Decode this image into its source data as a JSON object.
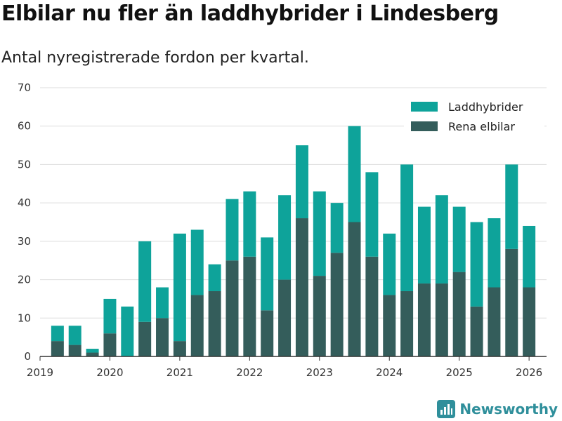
{
  "header": {
    "title": "Elbilar nu fler än laddhybrider i Lindesberg",
    "subtitle": "Antal nyregistrerade fordon per kvartal."
  },
  "brand": {
    "name": "Newsworthy"
  },
  "colors": {
    "hybrid": "#0ea39a",
    "electric": "#345d5b",
    "grid": "#dddddd",
    "axis": "#333333",
    "brand": "#2f8f9b"
  },
  "chart_data": {
    "type": "bar",
    "stacked": true,
    "title": "Elbilar nu fler än laddhybrider i Lindesberg",
    "subtitle": "Antal nyregistrerade fordon per kvartal.",
    "xlabel": "",
    "ylabel": "",
    "ylim": [
      0,
      70
    ],
    "yticks": [
      0,
      10,
      20,
      30,
      40,
      50,
      60,
      70
    ],
    "xlim": [
      2019,
      2026.25
    ],
    "xticks": [
      2019,
      2020,
      2021,
      2022,
      2023,
      2024,
      2025,
      2026
    ],
    "legend": {
      "position": "top-right",
      "entries": [
        "Laddhybrider",
        "Rena elbilar"
      ]
    },
    "x": [
      2019.25,
      2019.5,
      2019.75,
      2020.0,
      2020.25,
      2020.5,
      2020.75,
      2021.0,
      2021.25,
      2021.5,
      2021.75,
      2022.0,
      2022.25,
      2022.5,
      2022.75,
      2023.0,
      2023.25,
      2023.5,
      2023.75,
      2024.0,
      2024.25,
      2024.5,
      2024.75,
      2025.0,
      2025.25,
      2025.5,
      2025.75,
      2026.0
    ],
    "series": [
      {
        "name": "Rena elbilar",
        "values": [
          4,
          3,
          1,
          6,
          0,
          9,
          10,
          4,
          16,
          17,
          25,
          26,
          12,
          20,
          36,
          21,
          27,
          35,
          26,
          16,
          17,
          19,
          19,
          22,
          13,
          18,
          28,
          18
        ]
      },
      {
        "name": "Laddhybrider",
        "values": [
          4,
          5,
          1,
          9,
          13,
          21,
          8,
          28,
          17,
          7,
          16,
          17,
          19,
          22,
          19,
          22,
          13,
          25,
          22,
          16,
          33,
          20,
          23,
          17,
          22,
          18,
          22,
          16
        ]
      }
    ]
  }
}
